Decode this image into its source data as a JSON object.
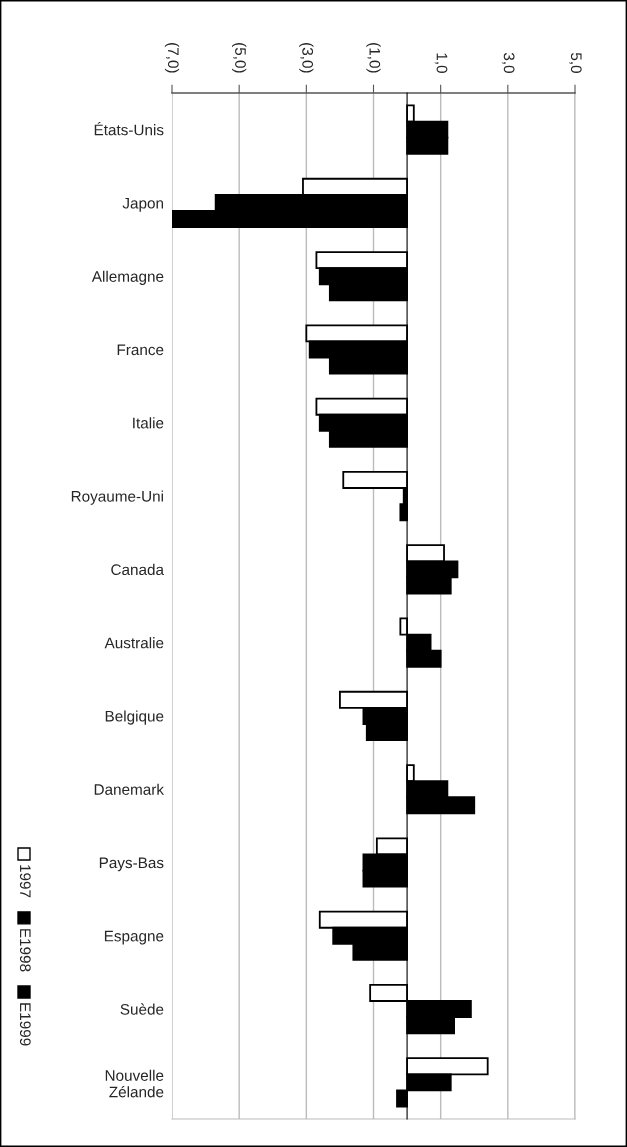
{
  "chart_data": {
    "type": "bar",
    "orientation": "horizontal",
    "categories": [
      "États-Unis",
      "Japon",
      "Allemagne",
      "France",
      "Italie",
      "Royaume-Uni",
      "Canada",
      "Australie",
      "Belgique",
      "Danemark",
      "Pays-Bas",
      "Espagne",
      "Suède",
      "Nouvelle\nZélande"
    ],
    "series": [
      {
        "name": "1997",
        "color": "#ffffff",
        "values": [
          0.2,
          -3.1,
          -2.7,
          -3.0,
          -2.7,
          -1.9,
          1.1,
          -0.2,
          -2.0,
          0.2,
          -0.9,
          -2.6,
          -1.1,
          2.4
        ]
      },
      {
        "name": "E1998",
        "color": "#000000",
        "values": [
          1.2,
          -5.7,
          -2.6,
          -2.9,
          -2.6,
          -0.1,
          1.5,
          0.7,
          -1.3,
          1.2,
          -1.3,
          -2.2,
          1.9,
          1.3
        ]
      },
      {
        "name": "E1999",
        "color": "#000000",
        "values": [
          1.2,
          -7.0,
          -2.3,
          -2.3,
          -2.3,
          -0.2,
          1.3,
          1.0,
          -1.2,
          2.0,
          -1.3,
          -1.6,
          1.4,
          -0.3
        ]
      }
    ],
    "xlim": [
      -7,
      5
    ],
    "xticks": [
      {
        "value": -7,
        "label": "(7,0)"
      },
      {
        "value": -5,
        "label": "(5,0)"
      },
      {
        "value": -3,
        "label": "(3,0)"
      },
      {
        "value": -1,
        "label": "(1,0)"
      },
      {
        "value": 1,
        "label": "1,0"
      },
      {
        "value": 3,
        "label": "3,0"
      },
      {
        "value": 5,
        "label": "5,0"
      }
    ],
    "grid": "x",
    "legend": "left"
  }
}
